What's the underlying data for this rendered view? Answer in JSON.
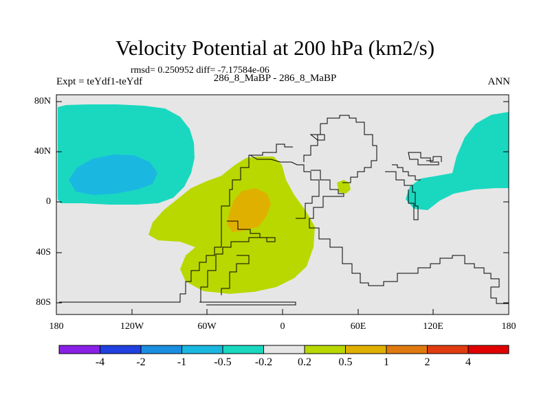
{
  "title": "Velocity Potential at 200 hPa (km2/s)",
  "stats_line": "rmsd= 0.250952 diff= -7.17584e-06",
  "left_label": "Expt = teYdf1-teYdf",
  "center_label": "286_8_MaBP - 286_8_MaBP",
  "right_label": "ANN",
  "map": {
    "projection": "cylindrical equidistant",
    "lon_range": [
      -180,
      180
    ],
    "lat_range": [
      -90,
      90
    ],
    "lat_ticks": [
      "80N",
      "40N",
      "0",
      "40S",
      "80S"
    ],
    "lon_ticks": [
      "180",
      "120W",
      "60W",
      "0",
      "60E",
      "120E",
      "180"
    ],
    "background_color": "#e6e6e6"
  },
  "colorbar": {
    "colors": [
      "#8a20e8",
      "#2040e0",
      "#1a8ee0",
      "#1ab8e0",
      "#1ad8c0",
      "#e6e6e6",
      "#b8d800",
      "#e0b000",
      "#e07a10",
      "#e03c10",
      "#e00000"
    ],
    "labels": [
      "-4",
      "-2",
      "-1",
      "-0.5",
      "-0.2",
      "0.2",
      "0.5",
      "1",
      "2",
      "4"
    ]
  }
}
